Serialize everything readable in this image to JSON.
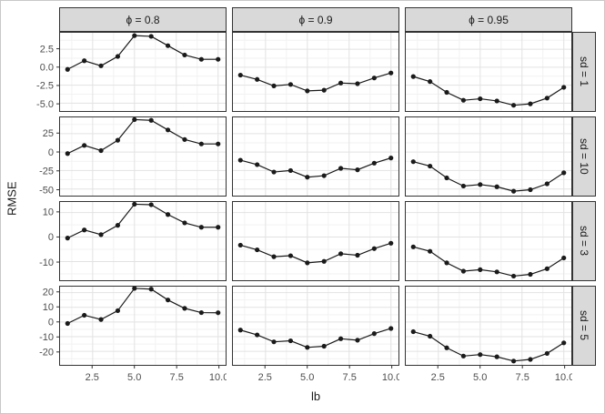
{
  "chart_data": {
    "type": "line",
    "description": "Faceted line-and-point plot (ggplot-style facet_grid) of RMSE versus lb, columns faceted by phi, rows faceted by sd with free y scales",
    "xlabel": "lb",
    "ylabel": "RMSE",
    "x": [
      1,
      2,
      3,
      4,
      5,
      6,
      7,
      8,
      9,
      10
    ],
    "xlim": [
      0.55,
      10.45
    ],
    "xticks": [
      2.5,
      5.0,
      7.5,
      10.0
    ],
    "xtick_labels": [
      "2.5",
      "5.0",
      "7.5",
      "10.0"
    ],
    "x_minor": [
      1.25,
      3.75,
      6.25,
      8.75
    ],
    "col_labels": [
      "ϕ = 0.8",
      "ϕ = 0.9",
      "ϕ = 0.95"
    ],
    "row_labels": [
      "sd = 1",
      "sd = 10",
      "sd = 3",
      "sd = 5"
    ],
    "legend": "none",
    "grid": "major and minor, light gray on white",
    "rows": [
      {
        "label": "sd = 1",
        "ylim": [
          -6.1,
          4.8
        ],
        "yticks": [
          2.5,
          0.0,
          -2.5,
          -5.0
        ],
        "ytick_labels": [
          "2.5",
          "0.0",
          "-2.5",
          "-5.0"
        ],
        "series": [
          {
            "name": "ϕ = 0.8",
            "values": [
              -0.3,
              0.9,
              0.2,
              1.5,
              4.4,
              4.3,
              3.0,
              1.7,
              1.1,
              1.1
            ]
          },
          {
            "name": "ϕ = 0.9",
            "values": [
              -1.1,
              -1.7,
              -2.6,
              -2.4,
              -3.3,
              -3.2,
              -2.2,
              -2.3,
              -1.5,
              -0.8
            ]
          },
          {
            "name": "ϕ = 0.95",
            "values": [
              -1.3,
              -2.0,
              -3.5,
              -4.6,
              -4.4,
              -4.7,
              -5.3,
              -5.1,
              -4.3,
              -2.8
            ]
          }
        ]
      },
      {
        "label": "sd = 10",
        "ylim": [
          -59.0,
          47.0
        ],
        "yticks": [
          25,
          0,
          -25,
          -50
        ],
        "ytick_labels": [
          "25",
          "0",
          "-25",
          "-50"
        ],
        "series": [
          {
            "name": "ϕ = 0.8",
            "values": [
              -2,
              9,
              2,
              16,
              44,
              43,
              30,
              17,
              11,
              11
            ]
          },
          {
            "name": "ϕ = 0.9",
            "values": [
              -11,
              -17,
              -27,
              -25,
              -34,
              -32,
              -22,
              -24,
              -15,
              -8
            ]
          },
          {
            "name": "ϕ = 0.95",
            "values": [
              -13,
              -19,
              -35,
              -46,
              -44,
              -47,
              -53,
              -51,
              -43,
              -28
            ]
          }
        ]
      },
      {
        "label": "sd = 3",
        "ylim": [
          -17.6,
          14.3
        ],
        "yticks": [
          10,
          0,
          -10
        ],
        "ytick_labels": [
          "10",
          "0",
          "-10"
        ],
        "series": [
          {
            "name": "ϕ = 0.8",
            "values": [
              -0.4,
              2.9,
              1.0,
              4.8,
              13.4,
              13.2,
              9.2,
              5.8,
              4.0,
              4.0
            ]
          },
          {
            "name": "ϕ = 0.9",
            "values": [
              -3.3,
              -5.2,
              -8.0,
              -7.6,
              -10.5,
              -9.9,
              -6.8,
              -7.4,
              -4.7,
              -2.5
            ]
          },
          {
            "name": "ϕ = 0.95",
            "values": [
              -4.0,
              -5.8,
              -10.5,
              -13.9,
              -13.3,
              -14.2,
              -15.9,
              -15.2,
              -12.9,
              -8.5
            ]
          }
        ]
      },
      {
        "label": "sd = 5",
        "ylim": [
          -29.2,
          24.1
        ],
        "yticks": [
          20,
          10,
          0,
          -10,
          -20
        ],
        "ytick_labels": [
          "20",
          "10",
          "0",
          "-10",
          "-20"
        ],
        "series": [
          {
            "name": "ϕ = 0.8",
            "values": [
              -1.0,
              4.6,
              1.7,
              7.7,
              22.9,
              22.4,
              15.0,
              9.3,
              6.4,
              6.3
            ]
          },
          {
            "name": "ϕ = 0.9",
            "values": [
              -5.5,
              -8.8,
              -13.5,
              -12.8,
              -17.3,
              -16.5,
              -11.4,
              -12.4,
              -7.9,
              -4.4
            ]
          },
          {
            "name": "ϕ = 0.95",
            "values": [
              -6.6,
              -9.7,
              -17.6,
              -23.2,
              -22.2,
              -23.7,
              -26.6,
              -25.5,
              -21.4,
              -14.2
            ]
          }
        ]
      }
    ],
    "colors": {
      "point": "#1a1a1a",
      "line": "#1a1a1a",
      "strip_bg": "#d9d9d9",
      "strip_border": "#333333",
      "panel_border": "#333333",
      "grid_major": "#e2e2e2",
      "grid_minor": "#f2f2f2",
      "tick_mark": "#333333",
      "tick_text": "#4d4d4d",
      "axis_title": "#1a1a1a",
      "figure_border": "#c8c8c8",
      "background": "#ffffff"
    }
  }
}
